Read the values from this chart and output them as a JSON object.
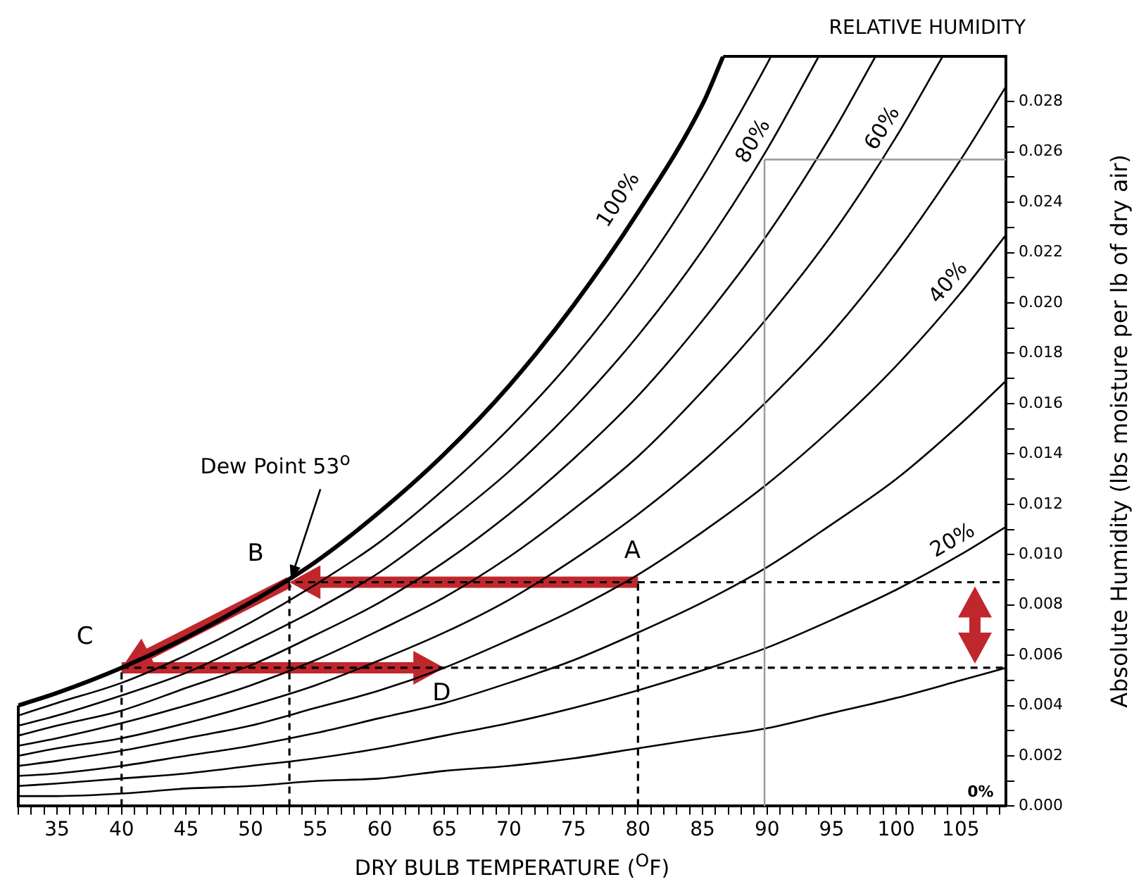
{
  "chart_data": {
    "type": "line",
    "title": "RELATIVE HUMIDITY",
    "xlabel": "DRY BULB TEMPERATURE ($^{O}$F)",
    "ylabel": "Absolute Humidity (lbs moisture per lb of dry air)",
    "marker": "none",
    "line_style": "solid",
    "series": [
      {
        "name": "100%",
        "color": "#000000",
        "x": [
          32,
          35,
          40,
          45,
          50,
          55,
          60,
          65,
          70,
          75,
          80,
          85,
          86.6
        ],
        "values": [
          0.004,
          0.0045,
          0.0055,
          0.0067,
          0.0081,
          0.0097,
          0.0117,
          0.014,
          0.0167,
          0.0199,
          0.0236,
          0.0279,
          0.0298
        ]
      },
      {
        "color": "#000000",
        "x": [
          32,
          35,
          40,
          45,
          50,
          55,
          60,
          65,
          70,
          75,
          80,
          85,
          90,
          90.3
        ],
        "values": [
          0.0036,
          0.0041,
          0.0049,
          0.006,
          0.0073,
          0.0088,
          0.0105,
          0.0126,
          0.015,
          0.0178,
          0.0211,
          0.025,
          0.0295,
          0.0298
        ]
      },
      {
        "name": "80%",
        "color": "#000000",
        "x": [
          32,
          35,
          40,
          45,
          50,
          55,
          60,
          65,
          70,
          75,
          80,
          85,
          90,
          94
        ],
        "values": [
          0.0032,
          0.0036,
          0.0044,
          0.0053,
          0.0065,
          0.0078,
          0.0093,
          0.0112,
          0.0133,
          0.0158,
          0.0187,
          0.0221,
          0.0261,
          0.0298
        ]
      },
      {
        "color": "#000000",
        "x": [
          32,
          35,
          40,
          45,
          50,
          55,
          60,
          65,
          70,
          75,
          80,
          85,
          90,
          95,
          98.4
        ],
        "values": [
          0.0028,
          0.0032,
          0.0038,
          0.0047,
          0.0056,
          0.0068,
          0.0081,
          0.0097,
          0.0116,
          0.0138,
          0.0163,
          0.0193,
          0.0227,
          0.0267,
          0.0298
        ]
      },
      {
        "name": "60%",
        "color": "#000000",
        "x": [
          32,
          35,
          40,
          45,
          50,
          55,
          60,
          65,
          70,
          75,
          80,
          85,
          90,
          95,
          100,
          103.6
        ],
        "values": [
          0.0024,
          0.0027,
          0.0033,
          0.004,
          0.0048,
          0.0058,
          0.007,
          0.0083,
          0.0099,
          0.0118,
          0.0139,
          0.0165,
          0.0194,
          0.0227,
          0.0266,
          0.0298
        ]
      },
      {
        "color": "#000000",
        "x": [
          32,
          35,
          40,
          45,
          50,
          55,
          60,
          65,
          70,
          75,
          80,
          85,
          90,
          95,
          100,
          105,
          108.5
        ],
        "values": [
          0.002,
          0.0023,
          0.0027,
          0.0033,
          0.004,
          0.0048,
          0.0058,
          0.0069,
          0.0082,
          0.0098,
          0.0116,
          0.0137,
          0.0161,
          0.0188,
          0.022,
          0.0257,
          0.0286
        ]
      },
      {
        "name": "40%",
        "color": "#000000",
        "x": [
          32,
          35,
          40,
          45,
          50,
          55,
          60,
          65,
          70,
          75,
          80,
          85,
          90,
          95,
          100,
          105,
          108.5
        ],
        "values": [
          0.0016,
          0.0018,
          0.0022,
          0.0027,
          0.0032,
          0.0039,
          0.0046,
          0.0055,
          0.0066,
          0.0078,
          0.0092,
          0.0109,
          0.0128,
          0.015,
          0.0175,
          0.0204,
          0.0227
        ]
      },
      {
        "color": "#000000",
        "x": [
          32,
          35,
          40,
          45,
          50,
          55,
          60,
          65,
          70,
          75,
          80,
          85,
          90,
          95,
          100,
          105,
          108.5
        ],
        "values": [
          0.0012,
          0.0013,
          0.0016,
          0.002,
          0.0024,
          0.0029,
          0.0035,
          0.0041,
          0.0049,
          0.0058,
          0.0069,
          0.0081,
          0.0095,
          0.0112,
          0.013,
          0.0152,
          0.0169
        ]
      },
      {
        "name": "20%",
        "color": "#000000",
        "x": [
          32,
          35,
          40,
          45,
          50,
          55,
          60,
          65,
          70,
          75,
          80,
          85,
          90,
          95,
          100,
          105,
          108.5
        ],
        "values": [
          0.0008,
          0.0009,
          0.0011,
          0.0013,
          0.0016,
          0.0019,
          0.0023,
          0.0028,
          0.0033,
          0.0039,
          0.0046,
          0.0054,
          0.0063,
          0.0074,
          0.0086,
          0.01,
          0.0111
        ]
      },
      {
        "color": "#000000",
        "x": [
          32,
          35,
          40,
          45,
          50,
          55,
          60,
          65,
          70,
          75,
          80,
          85,
          90,
          95,
          100,
          105,
          108.5
        ],
        "values": [
          0.0004,
          0.0004,
          0.0005,
          0.0007,
          0.0008,
          0.001,
          0.0011,
          0.0014,
          0.0016,
          0.0019,
          0.0023,
          0.0027,
          0.0031,
          0.0037,
          0.0043,
          0.005,
          0.0055
        ]
      }
    ],
    "xlim": [
      32,
      108.5
    ],
    "ylim": [
      0,
      0.0298
    ],
    "xticks": [
      {
        "value": 32,
        "label": null
      },
      {
        "value": 33,
        "label": null
      },
      {
        "value": 34,
        "label": null
      },
      35,
      {
        "value": 36,
        "label": null
      },
      {
        "value": 37,
        "label": null
      },
      {
        "value": 38,
        "label": null
      },
      {
        "value": 39,
        "label": null
      },
      40,
      {
        "value": 41,
        "label": null
      },
      {
        "value": 42,
        "label": null
      },
      {
        "value": 43,
        "label": null
      },
      {
        "value": 44,
        "label": null
      },
      45,
      {
        "value": 46,
        "label": null
      },
      {
        "value": 47,
        "label": null
      },
      {
        "value": 48,
        "label": null
      },
      {
        "value": 49,
        "label": null
      },
      50,
      {
        "value": 51,
        "label": null
      },
      {
        "value": 52,
        "label": null
      },
      {
        "value": 53,
        "label": null
      },
      {
        "value": 54,
        "label": null
      },
      55,
      {
        "value": 56,
        "label": null
      },
      {
        "value": 57,
        "label": null
      },
      {
        "value": 58,
        "label": null
      },
      {
        "value": 59,
        "label": null
      },
      60,
      {
        "value": 61,
        "label": null
      },
      {
        "value": 62,
        "label": null
      },
      {
        "value": 63,
        "label": null
      },
      {
        "value": 64,
        "label": null
      },
      65,
      {
        "value": 66,
        "label": null
      },
      {
        "value": 67,
        "label": null
      },
      {
        "value": 68,
        "label": null
      },
      {
        "value": 69,
        "label": null
      },
      70,
      {
        "value": 71,
        "label": null
      },
      {
        "value": 72,
        "label": null
      },
      {
        "value": 73,
        "label": null
      },
      {
        "value": 74,
        "label": null
      },
      75,
      {
        "value": 76,
        "label": null
      },
      {
        "value": 77,
        "label": null
      },
      {
        "value": 78,
        "label": null
      },
      {
        "value": 79,
        "label": null
      },
      80,
      {
        "value": 81,
        "label": null
      },
      {
        "value": 82,
        "label": null
      },
      {
        "value": 83,
        "label": null
      },
      {
        "value": 84,
        "label": null
      },
      85,
      {
        "value": 86,
        "label": null
      },
      {
        "value": 87,
        "label": null
      },
      {
        "value": 88,
        "label": null
      },
      {
        "value": 89,
        "label": null
      },
      90,
      {
        "value": 91,
        "label": null
      },
      {
        "value": 92,
        "label": null
      },
      {
        "value": 93,
        "label": null
      },
      {
        "value": 94,
        "label": null
      },
      95,
      {
        "value": 96,
        "label": null
      },
      {
        "value": 97,
        "label": null
      },
      {
        "value": 98,
        "label": null
      },
      {
        "value": 99,
        "label": null
      },
      100,
      {
        "value": 101,
        "label": null
      },
      {
        "value": 102,
        "label": null
      },
      {
        "value": 103,
        "label": null
      },
      {
        "value": 104,
        "label": null
      },
      105,
      {
        "value": 106,
        "label": null
      },
      {
        "value": 107,
        "label": null
      },
      {
        "value": 108,
        "label": null
      }
    ],
    "yticks": [
      {
        "value": 0,
        "label": "0.000"
      },
      {
        "value": 0.001,
        "label": null
      },
      {
        "value": 0.002,
        "label": "0.002"
      },
      {
        "value": 0.003,
        "label": null
      },
      {
        "value": 0.004,
        "label": "0.004"
      },
      {
        "value": 0.005,
        "label": null
      },
      {
        "value": 0.006,
        "label": "0.006"
      },
      {
        "value": 0.007,
        "label": null
      },
      {
        "value": 0.008,
        "label": "0.008"
      },
      {
        "value": 0.009,
        "label": null
      },
      {
        "value": 0.01,
        "label": "0.010"
      },
      {
        "value": 0.011,
        "label": null
      },
      {
        "value": 0.012,
        "label": "0.012"
      },
      {
        "value": 0.013,
        "label": null
      },
      {
        "value": 0.014,
        "label": "0.014"
      },
      {
        "value": 0.015,
        "label": null
      },
      {
        "value": 0.016,
        "label": "0.016"
      },
      {
        "value": 0.017,
        "label": null
      },
      {
        "value": 0.018,
        "label": "0.018"
      },
      {
        "value": 0.019,
        "label": null
      },
      {
        "value": 0.02,
        "label": "0.020"
      },
      {
        "value": 0.021,
        "label": null
      },
      {
        "value": 0.022,
        "label": "0.022"
      },
      {
        "value": 0.023,
        "label": null
      },
      {
        "value": 0.024,
        "label": "0.024"
      },
      {
        "value": 0.025,
        "label": null
      },
      {
        "value": 0.026,
        "label": "0.026"
      },
      {
        "value": 0.027,
        "label": null
      },
      {
        "value": 0.028,
        "label": "0.028"
      }
    ],
    "ref_lines": [
      {
        "axis": "y",
        "value": 0.0089,
        "color": "#000000",
        "line_style": "dashed"
      },
      {
        "axis": "y",
        "value": 0.0055,
        "color": "#000000",
        "line_style": "dashed"
      },
      {
        "axis": "x",
        "value": 40,
        "color": "#000000",
        "line_style": "dashed"
      },
      {
        "axis": "x",
        "value": 53,
        "color": "#000000",
        "line_style": "dashed"
      },
      {
        "axis": "x",
        "value": 80,
        "color": "#000000",
        "line_style": "dashed"
      },
      {
        "axis": "x",
        "value": 89.8,
        "color": "#999999",
        "line_style": "solid"
      },
      {
        "axis": "y",
        "value": 0.0257,
        "color": "#999999",
        "line_style": "solid"
      }
    ],
    "annotations": [
      {
        "text": "A",
        "x": 80,
        "y": 0.0089
      },
      {
        "text": "B",
        "x": 53,
        "y": 0.0089
      },
      {
        "text": "C",
        "x": 40,
        "y": 0.0055
      },
      {
        "text": "D",
        "x": 65,
        "y": 0.0055
      },
      {
        "text": "Dew Point 53$^{o}$",
        "x": 53,
        "y": 0.0089
      },
      "0%"
    ]
  }
}
